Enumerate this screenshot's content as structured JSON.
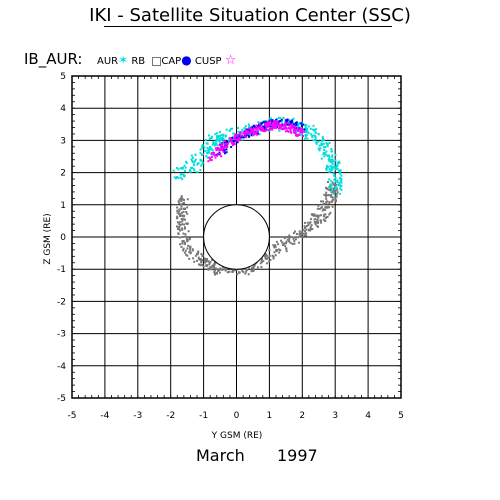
{
  "header": {
    "title": "IKI - Satellite Situation Center (SSC)",
    "satellite": "IB_AUR:"
  },
  "footer": {
    "date_month": "March",
    "date_year": "1997"
  },
  "colors": {
    "aur": "#00dddd",
    "rb": "#777777",
    "cap": "#0000ee",
    "cusp": "#ff00ff",
    "grid": "#000000",
    "earth": "#000000"
  },
  "chart_data": {
    "type": "scatter",
    "xlabel": "Y GSM (RE)",
    "ylabel": "Z GSM (RE)",
    "xlim": [
      -5,
      5
    ],
    "ylim": [
      -5,
      5
    ],
    "x_ticks": [
      -5,
      -4,
      -3,
      -2,
      -1,
      0,
      1,
      2,
      3,
      4,
      5
    ],
    "y_ticks": [
      -5,
      -4,
      -3,
      -2,
      -1,
      0,
      1,
      2,
      3,
      4,
      5
    ],
    "grid": true,
    "legend_position": "top-left",
    "legend": [
      {
        "label": "AUR",
        "marker": "star",
        "color_key": "aur"
      },
      {
        "label": "RB",
        "marker": "square",
        "color_key": "rb"
      },
      {
        "label": "CAP",
        "marker": "dot",
        "color_key": "cap"
      },
      {
        "label": "CUSP",
        "marker": "star",
        "color_key": "cusp"
      }
    ],
    "earth": {
      "center": [
        0,
        0
      ],
      "radius": 1
    },
    "series": [
      {
        "name": "RB",
        "color_key": "rb",
        "path": [
          [
            -1.6,
            1.2
          ],
          [
            -1.7,
            0.6
          ],
          [
            -1.5,
            -0.3
          ],
          [
            -1.0,
            -0.8
          ],
          [
            -0.5,
            -1.0
          ],
          [
            0.2,
            -1.0
          ],
          [
            0.8,
            -0.7
          ],
          [
            1.5,
            -0.2
          ],
          [
            2.2,
            0.3
          ],
          [
            2.6,
            0.7
          ],
          [
            2.9,
            1.3
          ],
          [
            2.9,
            1.6
          ]
        ],
        "spread": 0.18,
        "points_per_segment": 45
      },
      {
        "name": "AUR",
        "color_key": "aur",
        "path": [
          [
            -1.8,
            1.9
          ],
          [
            -1.2,
            2.3
          ],
          [
            -0.8,
            2.9
          ],
          [
            -0.4,
            3.1
          ],
          [
            0.3,
            3.3
          ],
          [
            1.0,
            3.5
          ],
          [
            1.6,
            3.5
          ],
          [
            2.1,
            3.3
          ],
          [
            2.5,
            3.0
          ],
          [
            2.8,
            2.5
          ],
          [
            3.0,
            2.0
          ],
          [
            3.0,
            1.5
          ]
        ],
        "spread": 0.2,
        "points_per_segment": 40
      },
      {
        "name": "CAP",
        "color_key": "cap",
        "path": [
          [
            -0.6,
            2.6
          ],
          [
            -0.1,
            3.0
          ],
          [
            0.5,
            3.3
          ],
          [
            1.0,
            3.5
          ],
          [
            1.5,
            3.55
          ],
          [
            2.0,
            3.4
          ]
        ],
        "spread": 0.12,
        "points_per_segment": 35
      },
      {
        "name": "CUSP",
        "color_key": "cusp",
        "path": [
          [
            -0.8,
            2.4
          ],
          [
            -0.3,
            2.9
          ],
          [
            0.3,
            3.2
          ],
          [
            0.8,
            3.4
          ],
          [
            1.2,
            3.5
          ],
          [
            1.6,
            3.4
          ],
          [
            2.0,
            3.2
          ]
        ],
        "spread": 0.12,
        "points_per_segment": 40
      }
    ]
  }
}
